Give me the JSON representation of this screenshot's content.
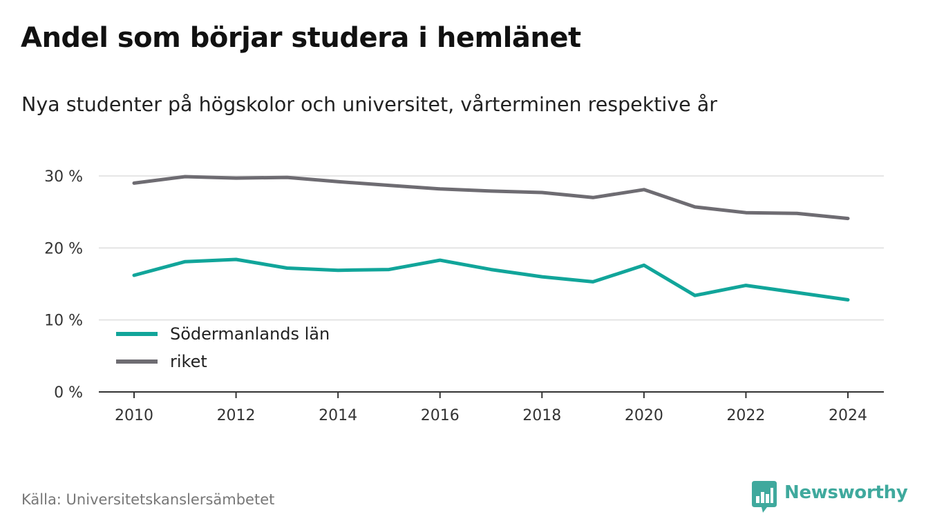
{
  "header": {
    "title": "Andel som börjar studera i hemlänet",
    "subtitle": "Nya studenter på högskolor och universitet, vårterminen respektive år"
  },
  "footer": {
    "source": "Källa: Universitetskanslersämbetet",
    "brand": "Newsworthy",
    "brand_icon": "bar-chart-speech-bubble-icon",
    "brand_color": "#3fa99d"
  },
  "chart_data": {
    "type": "line",
    "title": "Andel som börjar studera i hemlänet",
    "subtitle": "Nya studenter på högskolor och universitet, vårterminen respektive år",
    "xlabel": "",
    "ylabel": "",
    "x": [
      2010,
      2011,
      2012,
      2013,
      2014,
      2015,
      2016,
      2017,
      2018,
      2019,
      2020,
      2021,
      2022,
      2023,
      2024
    ],
    "x_ticks": [
      "2010",
      "2012",
      "2014",
      "2016",
      "2018",
      "2020",
      "2022",
      "2024"
    ],
    "y_ticks": [
      {
        "value": 0,
        "label": "0 %"
      },
      {
        "value": 10,
        "label": "10 %"
      },
      {
        "value": 20,
        "label": "20 %"
      },
      {
        "value": 30,
        "label": "30 %"
      }
    ],
    "ylim": [
      0,
      30
    ],
    "xlim": [
      2010,
      2024
    ],
    "grid": true,
    "legend_position": "bottom-left",
    "series": [
      {
        "name": "Södermanlands län",
        "color": "#11a59a",
        "values": [
          16.2,
          18.1,
          18.4,
          17.2,
          16.9,
          17.0,
          18.3,
          17.0,
          16.0,
          15.3,
          17.6,
          13.4,
          14.8,
          13.8,
          12.8
        ]
      },
      {
        "name": "riket",
        "color": "#6e6c72",
        "values": [
          29.0,
          29.9,
          29.7,
          29.8,
          29.2,
          28.7,
          28.2,
          27.9,
          27.7,
          27.0,
          28.1,
          25.7,
          24.9,
          24.8,
          24.1
        ]
      }
    ]
  }
}
